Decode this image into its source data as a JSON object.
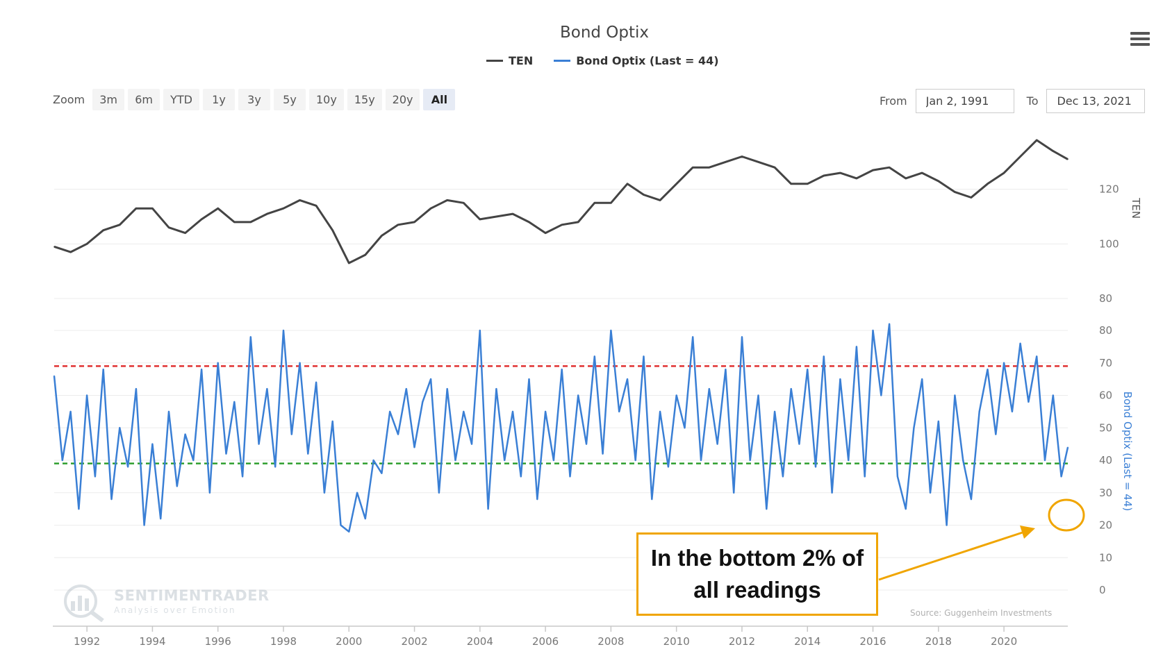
{
  "header": {
    "title": "Bond Optix",
    "menu_icon": "hamburger-menu-icon"
  },
  "legend": [
    {
      "label": "TEN",
      "color": "#444444"
    },
    {
      "label": "Bond Optix (Last = 44)",
      "color": "#3a7fd5"
    }
  ],
  "zoom": {
    "label": "Zoom",
    "buttons": [
      "3m",
      "6m",
      "YTD",
      "1y",
      "3y",
      "5y",
      "10y",
      "15y",
      "20y",
      "All"
    ],
    "active": "All"
  },
  "range": {
    "from_label": "From",
    "from_value": "Jan 2, 1991",
    "to_label": "To",
    "to_value": "Dec 13, 2021"
  },
  "annotation": {
    "callout_text": "In the bottom 2% of all readings",
    "accent_color": "#f0a500"
  },
  "source": "Source: Guggenheim Investments",
  "watermark": {
    "title": "SENTIMENTRADER",
    "subtitle": "Analysis over Emotion"
  },
  "chart_data": [
    {
      "type": "line",
      "title": "Bond Optix",
      "ylabel": "TEN",
      "yticks": [
        80,
        100,
        120
      ],
      "ylim": [
        80,
        140
      ],
      "x_range": [
        1991,
        2021.95
      ],
      "grid": true,
      "series": [
        {
          "name": "TEN",
          "color": "#444444",
          "x": [
            1991.0,
            1991.5,
            1992.0,
            1992.5,
            1993.0,
            1993.5,
            1994.0,
            1994.5,
            1995.0,
            1995.5,
            1996.0,
            1996.5,
            1997.0,
            1997.5,
            1998.0,
            1998.5,
            1999.0,
            1999.5,
            2000.0,
            2000.5,
            2001.0,
            2001.5,
            2002.0,
            2002.5,
            2003.0,
            2003.5,
            2004.0,
            2004.5,
            2005.0,
            2005.5,
            2006.0,
            2006.5,
            2007.0,
            2007.5,
            2008.0,
            2008.5,
            2009.0,
            2009.5,
            2010.0,
            2010.5,
            2011.0,
            2011.5,
            2012.0,
            2012.5,
            2013.0,
            2013.5,
            2014.0,
            2014.5,
            2015.0,
            2015.5,
            2016.0,
            2016.5,
            2017.0,
            2017.5,
            2018.0,
            2018.5,
            2019.0,
            2019.5,
            2020.0,
            2020.5,
            2021.0,
            2021.5,
            2021.95
          ],
          "y": [
            99,
            97,
            100,
            105,
            107,
            113,
            113,
            106,
            104,
            109,
            113,
            108,
            108,
            111,
            113,
            116,
            114,
            105,
            93,
            96,
            103,
            107,
            108,
            113,
            116,
            115,
            109,
            110,
            111,
            108,
            104,
            107,
            108,
            115,
            115,
            122,
            118,
            116,
            122,
            128,
            128,
            130,
            132,
            130,
            128,
            122,
            122,
            125,
            126,
            124,
            127,
            128,
            124,
            126,
            123,
            119,
            117,
            122,
            126,
            132,
            138,
            134,
            131
          ]
        }
      ]
    },
    {
      "type": "line",
      "ylabel": "Bond Optix (Last = 44)",
      "yticks": [
        0,
        10,
        20,
        30,
        40,
        50,
        60,
        70,
        80
      ],
      "ylim": [
        0,
        80
      ],
      "x_range": [
        1991,
        2021.95
      ],
      "grid": true,
      "reference_lines": [
        {
          "value": 69,
          "color": "#e03030",
          "style": "dashed"
        },
        {
          "value": 39,
          "color": "#2e9e2e",
          "style": "dashed"
        }
      ],
      "xticks": [
        "1992",
        "1994",
        "1996",
        "1998",
        "2000",
        "2002",
        "2004",
        "2006",
        "2008",
        "2010",
        "2012",
        "2014",
        "2016",
        "2018",
        "2020"
      ],
      "series": [
        {
          "name": "Bond Optix (Last = 44)",
          "color": "#3a7fd5",
          "last": 44,
          "x": [
            1991.0,
            1991.25,
            1991.5,
            1991.75,
            1992.0,
            1992.25,
            1992.5,
            1992.75,
            1993.0,
            1993.25,
            1993.5,
            1993.75,
            1994.0,
            1994.25,
            1994.5,
            1994.75,
            1995.0,
            1995.25,
            1995.5,
            1995.75,
            1996.0,
            1996.25,
            1996.5,
            1996.75,
            1997.0,
            1997.25,
            1997.5,
            1997.75,
            1998.0,
            1998.25,
            1998.5,
            1998.75,
            1999.0,
            1999.25,
            1999.5,
            1999.75,
            2000.0,
            2000.25,
            2000.5,
            2000.75,
            2001.0,
            2001.25,
            2001.5,
            2001.75,
            2002.0,
            2002.25,
            2002.5,
            2002.75,
            2003.0,
            2003.25,
            2003.5,
            2003.75,
            2004.0,
            2004.25,
            2004.5,
            2004.75,
            2005.0,
            2005.25,
            2005.5,
            2005.75,
            2006.0,
            2006.25,
            2006.5,
            2006.75,
            2007.0,
            2007.25,
            2007.5,
            2007.75,
            2008.0,
            2008.25,
            2008.5,
            2008.75,
            2009.0,
            2009.25,
            2009.5,
            2009.75,
            2010.0,
            2010.25,
            2010.5,
            2010.75,
            2011.0,
            2011.25,
            2011.5,
            2011.75,
            2012.0,
            2012.25,
            2012.5,
            2012.75,
            2013.0,
            2013.25,
            2013.5,
            2013.75,
            2014.0,
            2014.25,
            2014.5,
            2014.75,
            2015.0,
            2015.25,
            2015.5,
            2015.75,
            2016.0,
            2016.25,
            2016.5,
            2016.75,
            2017.0,
            2017.25,
            2017.5,
            2017.75,
            2018.0,
            2018.25,
            2018.5,
            2018.75,
            2019.0,
            2019.25,
            2019.5,
            2019.75,
            2020.0,
            2020.25,
            2020.5,
            2020.75,
            2021.0,
            2021.25,
            2021.5,
            2021.75,
            2021.95
          ],
          "y": [
            66,
            40,
            55,
            25,
            60,
            35,
            68,
            28,
            50,
            38,
            62,
            20,
            45,
            22,
            55,
            32,
            48,
            40,
            68,
            30,
            70,
            42,
            58,
            35,
            78,
            45,
            62,
            38,
            80,
            48,
            70,
            42,
            64,
            30,
            52,
            20,
            18,
            30,
            22,
            40,
            36,
            55,
            48,
            62,
            44,
            58,
            65,
            30,
            62,
            40,
            55,
            45,
            80,
            25,
            62,
            40,
            55,
            35,
            65,
            28,
            55,
            40,
            68,
            35,
            60,
            45,
            72,
            42,
            80,
            55,
            65,
            40,
            72,
            28,
            55,
            38,
            60,
            50,
            78,
            40,
            62,
            45,
            68,
            30,
            78,
            40,
            60,
            25,
            55,
            35,
            62,
            45,
            68,
            38,
            72,
            30,
            65,
            40,
            75,
            35,
            80,
            60,
            82,
            35,
            25,
            50,
            65,
            30,
            52,
            20,
            60,
            40,
            28,
            55,
            68,
            48,
            70,
            55,
            76,
            58,
            72,
            40,
            60,
            35,
            44
          ]
        }
      ]
    }
  ]
}
